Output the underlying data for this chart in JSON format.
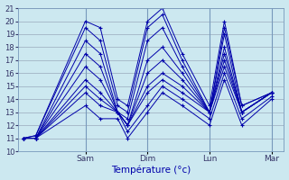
{
  "title": "Température (°c)",
  "bg_color": "#cce8f0",
  "plot_bg": "#cce8f0",
  "line_color": "#0000aa",
  "grid_color": "#99aabb",
  "ylim": [
    10,
    21
  ],
  "xtick_labels": [
    "Sam",
    "Dim",
    "Lun",
    "Mar"
  ],
  "series": [
    [
      11.0,
      11.2,
      20.0,
      19.5,
      14.0,
      13.5,
      20.0,
      21.0,
      17.5,
      13.5,
      20.0,
      13.5,
      14.5
    ],
    [
      11.0,
      11.2,
      19.5,
      18.5,
      13.5,
      13.0,
      19.5,
      20.5,
      17.0,
      13.0,
      19.5,
      13.5,
      14.5
    ],
    [
      11.0,
      11.0,
      18.5,
      17.5,
      13.0,
      12.5,
      18.5,
      19.5,
      16.5,
      13.0,
      19.0,
      13.0,
      14.5
    ],
    [
      11.0,
      11.0,
      17.5,
      16.5,
      13.0,
      12.0,
      17.0,
      18.0,
      16.0,
      13.0,
      18.0,
      13.0,
      14.5
    ],
    [
      11.0,
      11.0,
      16.5,
      15.5,
      13.0,
      12.0,
      16.0,
      17.0,
      15.5,
      13.0,
      17.5,
      13.0,
      14.5
    ],
    [
      11.0,
      11.0,
      15.5,
      14.5,
      13.0,
      12.0,
      15.0,
      16.0,
      15.0,
      13.0,
      17.0,
      13.0,
      14.5
    ],
    [
      11.0,
      11.0,
      15.0,
      14.0,
      13.0,
      12.0,
      14.5,
      15.5,
      14.5,
      13.0,
      16.5,
      13.0,
      14.5
    ],
    [
      11.0,
      11.0,
      14.5,
      13.5,
      13.0,
      11.5,
      13.5,
      15.0,
      14.0,
      12.5,
      16.0,
      12.5,
      14.2
    ],
    [
      11.0,
      11.0,
      13.5,
      12.5,
      12.5,
      11.0,
      13.0,
      14.5,
      13.5,
      12.0,
      15.5,
      12.0,
      14.0
    ]
  ],
  "x_positions": [
    0.0,
    0.05,
    0.25,
    0.31,
    0.38,
    0.42,
    0.5,
    0.56,
    0.64,
    0.75,
    0.81,
    0.88,
    1.0
  ],
  "xtick_positions": [
    0.25,
    0.5,
    0.75,
    1.0
  ],
  "xlim": [
    -0.02,
    1.05
  ]
}
